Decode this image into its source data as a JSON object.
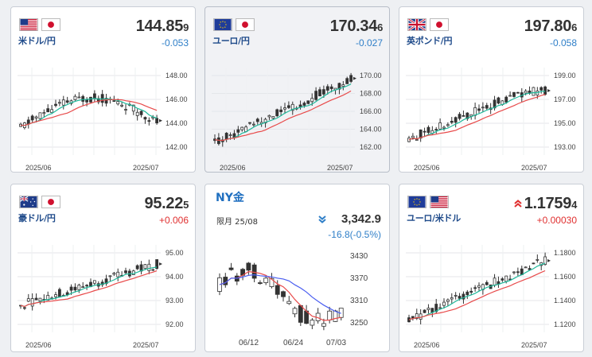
{
  "tiles": [
    {
      "pair": "米ドル/円",
      "price_main": "144.85",
      "price_small": "9",
      "change": "-0.053",
      "direction": "down",
      "flags": [
        "us-flag-icon",
        "jp-flag-icon"
      ],
      "chart": {
        "yticks": [
          "148.00",
          "146.00",
          "144.00",
          "142.00"
        ],
        "xticks": [
          "2025/06",
          "2025/07"
        ]
      }
    },
    {
      "pair": "ユーロ/円",
      "price_main": "170.34",
      "price_small": "6",
      "change": "-0.027",
      "direction": "down",
      "flags": [
        "eu-flag-icon",
        "jp-flag-icon"
      ],
      "chart": {
        "yticks": [
          "170.00",
          "168.00",
          "166.00",
          "164.00",
          "162.00"
        ],
        "xticks": [
          "2025/06",
          "2025/07"
        ]
      }
    },
    {
      "pair": "英ポンド/円",
      "price_main": "197.80",
      "price_small": "6",
      "change": "-0.058",
      "direction": "down",
      "flags": [
        "uk-flag-icon",
        "jp-flag-icon"
      ],
      "chart": {
        "yticks": [
          "199.00",
          "197.00",
          "195.00",
          "193.00"
        ],
        "xticks": [
          "2025/06",
          "2025/07"
        ]
      }
    },
    {
      "pair": "豪ドル/円",
      "price_main": "95.22",
      "price_small": "5",
      "change": "+0.006",
      "direction": "up",
      "flags": [
        "au-flag-icon",
        "jp-flag-icon"
      ],
      "chart": {
        "yticks": [
          "95.00",
          "94.00",
          "93.00",
          "92.00"
        ],
        "xticks": [
          "2025/06",
          "2025/07"
        ]
      }
    },
    {
      "pair": "ユーロ/米ドル",
      "price_main": "1.1759",
      "price_small": "4",
      "change": "+0.00030",
      "direction": "up",
      "flags": [
        "eu-flag-icon",
        "us-flag-icon"
      ],
      "chart": {
        "yticks": [
          "1.1800",
          "1.1600",
          "1.1400",
          "1.1200"
        ],
        "xticks": [
          "2025/06",
          "2025/07"
        ]
      }
    }
  ],
  "ny_gold": {
    "title": "NY金",
    "month": "限月 25/08",
    "price": "3,342.9",
    "change": "-16.8(-0.5%)",
    "direction": "down",
    "chart": {
      "yticks": [
        "3430",
        "3370",
        "3310",
        "3250"
      ],
      "xticks": [
        "06/12",
        "06/24",
        "07/03"
      ]
    }
  },
  "colors": {
    "up": "#e03030",
    "down": "#2f7fc8",
    "fast_ma": "#1fb89a",
    "slow_ma": "#e84a4a",
    "ny_ma_blue": "#4a5ef0"
  }
}
